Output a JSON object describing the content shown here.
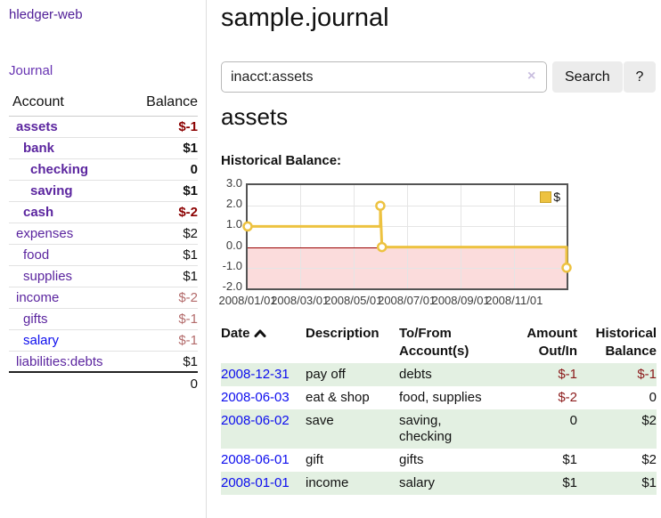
{
  "app": {
    "title": "hledger-web"
  },
  "nav": {
    "journal": "Journal"
  },
  "sidebar": {
    "header": {
      "account": "Account",
      "balance": "Balance"
    },
    "accounts": [
      {
        "name": "assets",
        "balance": "$-1"
      },
      {
        "name": "bank",
        "balance": "$1"
      },
      {
        "name": "checking",
        "balance": "0"
      },
      {
        "name": "saving",
        "balance": "$1"
      },
      {
        "name": "cash",
        "balance": "$-2"
      },
      {
        "name": "expenses",
        "balance": "$2"
      },
      {
        "name": "food",
        "balance": "$1"
      },
      {
        "name": "supplies",
        "balance": "$1"
      },
      {
        "name": "income",
        "balance": "$-2"
      },
      {
        "name": "gifts",
        "balance": "$-1"
      },
      {
        "name": "salary",
        "balance": "$-1"
      },
      {
        "name": "liabilities:debts",
        "balance": "$1"
      }
    ],
    "total": "0"
  },
  "header": {
    "title": "sample.journal"
  },
  "search": {
    "value": "inacct:assets",
    "clear_icon": "×",
    "button_label": "Search",
    "help_label": "?"
  },
  "account_page": {
    "heading": "assets",
    "chart_title": "Historical Balance:"
  },
  "chart_data": {
    "type": "line",
    "title": "Historical Balance",
    "legend": [
      {
        "label": "$",
        "color": "#edc240"
      }
    ],
    "legend_position": "top-right",
    "grid": true,
    "ylim": [
      -2,
      3
    ],
    "yticks": [
      {
        "label": "3.0",
        "value": 3
      },
      {
        "label": "2.0",
        "value": 2
      },
      {
        "label": "1.0",
        "value": 1
      },
      {
        "label": "0.0",
        "value": 0
      },
      {
        "label": "-1.0",
        "value": -1
      },
      {
        "label": "-2.0",
        "value": -2
      }
    ],
    "xticks": [
      {
        "label": "2008/01/01",
        "pos": 0.0
      },
      {
        "label": "2008/03/01",
        "pos": 0.164
      },
      {
        "label": "2008/05/01",
        "pos": 0.332
      },
      {
        "label": "2008/07/01",
        "pos": 0.499
      },
      {
        "label": "2008/09/01",
        "pos": 0.668
      },
      {
        "label": "2008/11/01",
        "pos": 0.836
      }
    ],
    "points": [
      {
        "date": "2008-01-01",
        "value": 1
      },
      {
        "date": "2008-06-01",
        "value": 2
      },
      {
        "date": "2008-06-02",
        "value": 2
      },
      {
        "date": "2008-06-03",
        "value": 0
      },
      {
        "date": "2008-12-31",
        "value": -1
      }
    ],
    "step_path": [
      [
        0,
        1
      ],
      [
        0.416,
        1
      ],
      [
        0.416,
        2
      ],
      [
        0.421,
        0
      ],
      [
        1,
        0
      ],
      [
        1,
        -1
      ]
    ],
    "markers": [
      [
        0,
        1
      ],
      [
        0.416,
        2
      ],
      [
        0.421,
        0
      ],
      [
        1,
        -1
      ]
    ],
    "line_color": "#edc240",
    "negative_fill": "#fbdcdc",
    "zero_line_color": "#990000"
  },
  "register": {
    "columns": {
      "date": "Date",
      "description": "Description",
      "accounts": "To/From Account(s)",
      "amount": "Amount Out/In",
      "historical": "Historical Balance"
    },
    "rows": [
      {
        "date": "2008-12-31",
        "description": "pay off",
        "accounts": "debts",
        "amount": "$-1",
        "historical": "$-1"
      },
      {
        "date": "2008-06-03",
        "description": "eat & shop",
        "accounts": "food, supplies",
        "amount": "$-2",
        "historical": "0"
      },
      {
        "date": "2008-06-02",
        "description": "save",
        "accounts": "saving, checking",
        "amount": "0",
        "historical": "$2"
      },
      {
        "date": "2008-06-01",
        "description": "gift",
        "accounts": "gifts",
        "amount": "$1",
        "historical": "$2"
      },
      {
        "date": "2008-01-01",
        "description": "income",
        "accounts": "salary",
        "amount": "$1",
        "historical": "$1"
      }
    ]
  },
  "colors": {
    "link_purple": "#5b259f",
    "link_blue": "#0c0cee",
    "negative_bold": "#8b0000",
    "negative_muted": "#b36b6b",
    "negative_table": "#8b1a1a",
    "row_green": "#e3f0e2",
    "chart_line": "#edc240",
    "chart_negative_fill": "#fbdcdc",
    "chart_zero_line": "#990000"
  }
}
